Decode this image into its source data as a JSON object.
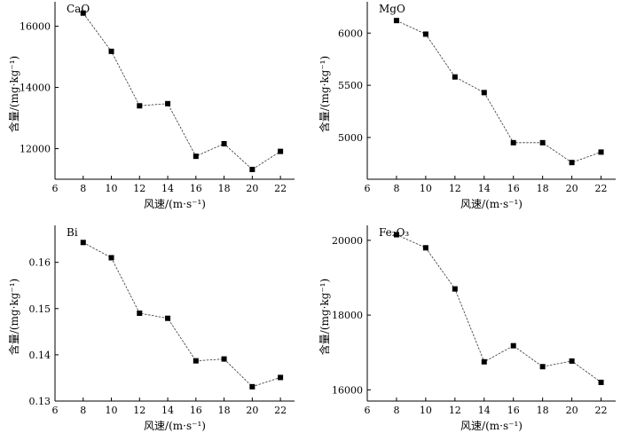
{
  "chart_data": [
    {
      "type": "line",
      "label": "CaO",
      "xlabel": "风速/(m·s⁻¹)",
      "ylabel": "含量/(mg·kg⁻¹)",
      "xlim": [
        6,
        23
      ],
      "ylim": [
        11000,
        16800
      ],
      "xticks": [
        6,
        8,
        10,
        12,
        14,
        16,
        18,
        20,
        22
      ],
      "yticks": [
        12000,
        14000,
        16000
      ],
      "x": [
        8,
        10,
        12,
        14,
        16,
        18,
        20,
        22
      ],
      "y": [
        16430,
        15180,
        13400,
        13470,
        11750,
        12160,
        11320,
        11910
      ]
    },
    {
      "type": "line",
      "label": "MgO",
      "xlabel": "风速/(m·s⁻¹)",
      "ylabel": "含量/(mg·kg⁻¹)",
      "xlim": [
        6,
        23
      ],
      "ylim": [
        4600,
        6300
      ],
      "xticks": [
        6,
        8,
        10,
        12,
        14,
        16,
        18,
        20,
        22
      ],
      "yticks": [
        5000,
        5500,
        6000
      ],
      "x": [
        8,
        10,
        12,
        14,
        16,
        18,
        20,
        22
      ],
      "y": [
        6120,
        5990,
        5580,
        5430,
        4950,
        4950,
        4760,
        4860
      ]
    },
    {
      "type": "line",
      "label": "Bi",
      "xlabel": "风速/(m·s⁻¹)",
      "ylabel": "含量/(mg·kg⁻¹)",
      "xlim": [
        6,
        23
      ],
      "ylim": [
        0.13,
        0.168
      ],
      "xticks": [
        6,
        8,
        10,
        12,
        14,
        16,
        18,
        20,
        22
      ],
      "yticks": [
        0.13,
        0.14,
        0.15,
        0.16
      ],
      "x": [
        8,
        10,
        12,
        14,
        16,
        18,
        20,
        22
      ],
      "y": [
        0.1643,
        0.161,
        0.149,
        0.1479,
        0.1387,
        0.1391,
        0.1331,
        0.1351
      ]
    },
    {
      "type": "line",
      "label": "Fe₂O₃",
      "xlabel": "风速/(m·s⁻¹)",
      "ylabel": "含量/(mg·kg⁻¹)",
      "xlim": [
        6,
        23
      ],
      "ylim": [
        15700,
        20400
      ],
      "xticks": [
        6,
        8,
        10,
        12,
        14,
        16,
        18,
        20,
        22
      ],
      "yticks": [
        16000,
        18000,
        20000
      ],
      "x": [
        8,
        10,
        12,
        14,
        16,
        18,
        20,
        22
      ],
      "y": [
        20150,
        19800,
        18700,
        16750,
        17180,
        16620,
        16770,
        16200
      ]
    }
  ]
}
